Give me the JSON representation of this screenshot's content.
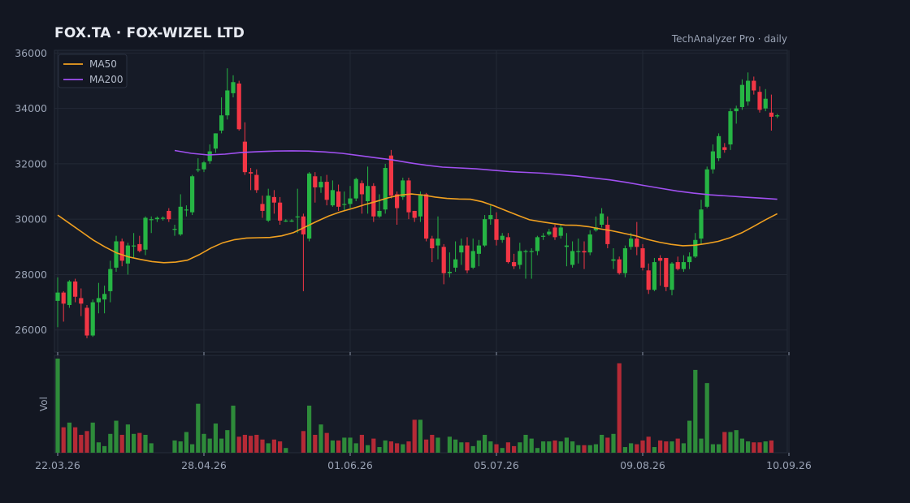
{
  "header": {
    "title": "FOX.TA  ·  FOX-WIZEL LTD",
    "source": "TechAnalyzer Pro · daily"
  },
  "colors": {
    "background": "#131722",
    "up": "#26b544",
    "down": "#f23645",
    "vol_up": "#2e8b3a",
    "vol_down": "#b52a36",
    "ma50": "#f0a020",
    "ma200": "#a050f0",
    "grid": "#232936",
    "text": "#9aa3b5"
  },
  "chart_data": {
    "type": "candlestick",
    "ticker": "FOX.TA",
    "interval": "daily",
    "price_axis": {
      "ylim": [
        25200,
        36100
      ],
      "ticks": [
        26000,
        28000,
        30000,
        32000,
        34000,
        36000
      ]
    },
    "volume_axis": {
      "label": "Vol"
    },
    "x_ticks": [
      {
        "index": 0,
        "label": "22.03.26"
      },
      {
        "index": 25,
        "label": "28.04.26"
      },
      {
        "index": 50,
        "label": "01.06.26"
      },
      {
        "index": 75,
        "label": "05.07.26"
      },
      {
        "index": 100,
        "label": "09.08.26"
      },
      {
        "index": 125,
        "label": "10.09.26"
      }
    ],
    "legend": {
      "position": "top-left",
      "entries": [
        "MA50",
        "MA200"
      ]
    },
    "grid": true,
    "candles": [
      [
        27050,
        27350,
        26100,
        27900
      ],
      [
        27350,
        26950,
        26300,
        27400
      ],
      [
        26900,
        27750,
        26800,
        27800
      ],
      [
        27750,
        27200,
        27000,
        27850
      ],
      [
        27150,
        26950,
        26500,
        27500
      ],
      [
        26800,
        25800,
        25700,
        26900
      ],
      [
        25800,
        27000,
        25750,
        27100
      ],
      [
        27000,
        27150,
        26600,
        27700
      ],
      [
        27100,
        27300,
        26600,
        27600
      ],
      [
        27400,
        28200,
        27000,
        28500
      ],
      [
        28250,
        29200,
        28100,
        29400
      ],
      [
        29200,
        28500,
        28300,
        29300
      ],
      [
        28400,
        29050,
        28000,
        29150
      ],
      [
        29050,
        29050,
        28600,
        29500
      ],
      [
        29100,
        28850,
        28800,
        29400
      ],
      [
        28900,
        30050,
        28700,
        30100
      ],
      [
        30000,
        30000,
        29500,
        30100
      ],
      [
        30000,
        30050,
        29900,
        30100
      ],
      [
        30050,
        30050,
        29950,
        30100
      ],
      [
        30300,
        30000,
        29900,
        30400
      ],
      [
        29650,
        29650,
        29400,
        29800
      ],
      [
        29450,
        30450,
        29400,
        30900
      ],
      [
        30350,
        30350,
        30100,
        30500
      ],
      [
        30250,
        31550,
        30150,
        31600
      ],
      [
        31800,
        31800,
        31700,
        32200
      ],
      [
        31800,
        32050,
        31700,
        32100
      ],
      [
        32100,
        32450,
        32000,
        32700
      ],
      [
        32550,
        33100,
        32400,
        33100
      ],
      [
        33200,
        33750,
        33100,
        34400
      ],
      [
        33750,
        34650,
        33600,
        35450
      ],
      [
        34550,
        34950,
        34400,
        35200
      ],
      [
        34900,
        33250,
        33200,
        35000
      ],
      [
        32800,
        31700,
        31600,
        33500
      ],
      [
        31700,
        31650,
        31050,
        31850
      ],
      [
        31600,
        31050,
        30950,
        31800
      ],
      [
        30550,
        30300,
        30050,
        30850
      ],
      [
        29950,
        30850,
        29900,
        31100
      ],
      [
        30800,
        30600,
        30200,
        31050
      ],
      [
        30600,
        29950,
        29800,
        30800
      ],
      [
        29950,
        29950,
        29900,
        30000
      ],
      [
        29950,
        29950,
        29900,
        30000
      ],
      [
        30100,
        30100,
        29500,
        31100
      ],
      [
        30100,
        29450,
        27400,
        30200
      ],
      [
        29300,
        31650,
        29200,
        31700
      ],
      [
        31550,
        31150,
        30600,
        31700
      ],
      [
        31150,
        31350,
        30950,
        31550
      ],
      [
        31350,
        30700,
        30500,
        31600
      ],
      [
        30500,
        31050,
        30450,
        31400
      ],
      [
        31000,
        30450,
        30300,
        31250
      ],
      [
        30550,
        30550,
        30300,
        31000
      ],
      [
        30550,
        30750,
        30400,
        31200
      ],
      [
        30750,
        31450,
        30650,
        31500
      ],
      [
        31300,
        30900,
        30200,
        31400
      ],
      [
        30650,
        31200,
        30200,
        31900
      ],
      [
        31200,
        30100,
        29900,
        31300
      ],
      [
        30100,
        30300,
        30050,
        30900
      ],
      [
        30350,
        31850,
        30200,
        32000
      ],
      [
        32300,
        30850,
        30750,
        32500
      ],
      [
        30900,
        30400,
        29800,
        31000
      ],
      [
        30800,
        31400,
        30700,
        31500
      ],
      [
        31400,
        30250,
        30000,
        31500
      ],
      [
        30300,
        30050,
        29900,
        30300
      ],
      [
        30100,
        30900,
        29900,
        31000
      ],
      [
        30900,
        29300,
        29200,
        30950
      ],
      [
        29300,
        28950,
        28450,
        29400
      ],
      [
        29050,
        29300,
        28550,
        30100
      ],
      [
        29000,
        28050,
        27650,
        29100
      ],
      [
        28050,
        28100,
        27900,
        28800
      ],
      [
        28250,
        28550,
        28100,
        29200
      ],
      [
        28800,
        29050,
        28350,
        29300
      ],
      [
        29050,
        28150,
        28050,
        29350
      ],
      [
        28250,
        28850,
        28200,
        29300
      ],
      [
        28750,
        29050,
        28300,
        29250
      ],
      [
        29050,
        30000,
        29000,
        30150
      ],
      [
        30000,
        30150,
        29800,
        30500
      ],
      [
        30000,
        29250,
        29050,
        30250
      ],
      [
        29250,
        29400,
        29150,
        29500
      ],
      [
        29350,
        28450,
        28400,
        29500
      ],
      [
        28450,
        28300,
        28200,
        28750
      ],
      [
        28350,
        28850,
        28200,
        29150
      ],
      [
        28850,
        28850,
        27850,
        28900
      ],
      [
        28850,
        28850,
        27850,
        28950
      ],
      [
        28850,
        29350,
        28700,
        29400
      ],
      [
        29400,
        29400,
        29250,
        29500
      ],
      [
        29450,
        29550,
        29400,
        29650
      ],
      [
        29700,
        29350,
        29250,
        29800
      ],
      [
        29400,
        29700,
        29300,
        29800
      ],
      [
        29000,
        29050,
        28300,
        29500
      ],
      [
        28350,
        28850,
        28250,
        29200
      ],
      [
        28850,
        28850,
        28400,
        29300
      ],
      [
        28850,
        28800,
        28200,
        29200
      ],
      [
        28800,
        29450,
        28700,
        29600
      ],
      [
        29600,
        29700,
        29550,
        30100
      ],
      [
        29800,
        30200,
        29700,
        30400
      ],
      [
        29800,
        29100,
        28950,
        30100
      ],
      [
        28500,
        28550,
        28200,
        28950
      ],
      [
        28550,
        28050,
        28000,
        28650
      ],
      [
        28050,
        28950,
        27900,
        29050
      ],
      [
        29000,
        29300,
        28900,
        29500
      ],
      [
        29300,
        29000,
        28700,
        29900
      ],
      [
        28950,
        28250,
        28150,
        29100
      ],
      [
        28150,
        27450,
        27300,
        28400
      ],
      [
        27450,
        28450,
        27400,
        28600
      ],
      [
        28600,
        28500,
        27600,
        28700
      ],
      [
        28600,
        27550,
        27400,
        28600
      ],
      [
        27450,
        28400,
        27250,
        28450
      ],
      [
        28450,
        28200,
        28150,
        28650
      ],
      [
        28200,
        28450,
        28100,
        28700
      ],
      [
        28450,
        28650,
        28200,
        28800
      ],
      [
        28650,
        29250,
        28600,
        29500
      ],
      [
        29300,
        30350,
        29100,
        30700
      ],
      [
        30450,
        31800,
        30400,
        31900
      ],
      [
        31800,
        32450,
        31650,
        32700
      ],
      [
        32200,
        33000,
        32100,
        33100
      ],
      [
        32600,
        32500,
        32400,
        32750
      ],
      [
        32700,
        33900,
        32500,
        34000
      ],
      [
        33900,
        34000,
        33450,
        34100
      ],
      [
        34050,
        34850,
        33950,
        35050
      ],
      [
        34250,
        35000,
        34100,
        35300
      ],
      [
        35000,
        34650,
        34500,
        35150
      ],
      [
        34600,
        33950,
        33850,
        34800
      ],
      [
        34000,
        34350,
        33900,
        34700
      ],
      [
        33850,
        33700,
        33200,
        34500
      ],
      [
        33750,
        33750,
        33650,
        33800
      ]
    ],
    "volume": [
      1.0,
      0.27,
      0.32,
      0.27,
      0.19,
      0.23,
      0.32,
      0.11,
      0.07,
      0.2,
      0.34,
      0.19,
      0.3,
      0.2,
      0.21,
      0.19,
      0.1,
      0.0,
      0.0,
      0.0,
      0.13,
      0.12,
      0.22,
      0.09,
      0.52,
      0.2,
      0.15,
      0.31,
      0.15,
      0.24,
      0.5,
      0.17,
      0.19,
      0.18,
      0.19,
      0.14,
      0.1,
      0.14,
      0.12,
      0.05,
      0.0,
      0.0,
      0.23,
      0.5,
      0.19,
      0.3,
      0.21,
      0.13,
      0.13,
      0.16,
      0.16,
      0.1,
      0.19,
      0.08,
      0.15,
      0.06,
      0.13,
      0.12,
      0.1,
      0.09,
      0.12,
      0.35,
      0.35,
      0.14,
      0.19,
      0.16,
      0.0,
      0.17,
      0.14,
      0.11,
      0.11,
      0.07,
      0.13,
      0.19,
      0.12,
      0.09,
      0.05,
      0.11,
      0.07,
      0.11,
      0.19,
      0.15,
      0.05,
      0.12,
      0.12,
      0.13,
      0.12,
      0.16,
      0.12,
      0.08,
      0.08,
      0.08,
      0.09,
      0.19,
      0.16,
      0.2,
      0.95,
      0.06,
      0.1,
      0.09,
      0.13,
      0.17,
      0.06,
      0.13,
      0.12,
      0.12,
      0.15,
      0.1,
      0.34,
      0.88,
      0.15,
      0.74,
      0.09,
      0.09,
      0.22,
      0.22,
      0.24,
      0.15,
      0.12,
      0.11,
      0.11,
      0.12,
      0.13
    ],
    "ma50": [
      [
        0,
        30150
      ],
      [
        3,
        29850
      ],
      [
        6,
        29550
      ],
      [
        9,
        29250
      ],
      [
        12,
        29000
      ],
      [
        15,
        28780
      ],
      [
        18,
        28640
      ],
      [
        21,
        28550
      ],
      [
        24,
        28470
      ],
      [
        27,
        28430
      ],
      [
        30,
        28450
      ],
      [
        33,
        28520
      ],
      [
        36,
        28720
      ],
      [
        39,
        28960
      ],
      [
        42,
        29150
      ],
      [
        45,
        29260
      ],
      [
        48,
        29320
      ],
      [
        51,
        29330
      ],
      [
        54,
        29340
      ],
      [
        57,
        29400
      ],
      [
        60,
        29520
      ],
      [
        63,
        29720
      ],
      [
        66,
        29930
      ],
      [
        69,
        30120
      ],
      [
        72,
        30270
      ],
      [
        75,
        30390
      ],
      [
        78,
        30520
      ],
      [
        81,
        30640
      ],
      [
        84,
        30770
      ],
      [
        87,
        30870
      ],
      [
        90,
        30910
      ],
      [
        93,
        30870
      ],
      [
        96,
        30800
      ],
      [
        99,
        30750
      ],
      [
        102,
        30730
      ],
      [
        105,
        30720
      ],
      [
        108,
        30630
      ],
      [
        111,
        30480
      ],
      [
        114,
        30310
      ],
      [
        117,
        30140
      ],
      [
        120,
        29980
      ],
      [
        123,
        29910
      ],
      [
        126,
        29840
      ],
      [
        129,
        29790
      ],
      [
        132,
        29780
      ],
      [
        135,
        29730
      ],
      [
        138,
        29650
      ],
      [
        141,
        29580
      ],
      [
        144,
        29490
      ],
      [
        147,
        29400
      ],
      [
        150,
        29270
      ],
      [
        153,
        29170
      ],
      [
        156,
        29090
      ],
      [
        159,
        29040
      ],
      [
        162,
        29060
      ],
      [
        165,
        29120
      ],
      [
        168,
        29200
      ],
      [
        171,
        29330
      ],
      [
        174,
        29510
      ],
      [
        177,
        29740
      ],
      [
        180,
        29980
      ],
      [
        183,
        30200
      ]
    ],
    "ma200": [
      [
        0,
        32480
      ],
      [
        6,
        32380
      ],
      [
        12,
        32320
      ],
      [
        18,
        32350
      ],
      [
        24,
        32410
      ],
      [
        30,
        32440
      ],
      [
        36,
        32460
      ],
      [
        42,
        32470
      ],
      [
        48,
        32460
      ],
      [
        54,
        32430
      ],
      [
        60,
        32380
      ],
      [
        66,
        32300
      ],
      [
        72,
        32220
      ],
      [
        78,
        32140
      ],
      [
        84,
        32040
      ],
      [
        90,
        31950
      ],
      [
        96,
        31880
      ],
      [
        102,
        31850
      ],
      [
        108,
        31820
      ],
      [
        114,
        31770
      ],
      [
        120,
        31720
      ],
      [
        126,
        31690
      ],
      [
        132,
        31660
      ],
      [
        138,
        31610
      ],
      [
        144,
        31560
      ],
      [
        150,
        31490
      ],
      [
        156,
        31420
      ],
      [
        162,
        31330
      ],
      [
        168,
        31220
      ],
      [
        174,
        31120
      ],
      [
        180,
        31020
      ],
      [
        186,
        30940
      ],
      [
        192,
        30880
      ],
      [
        198,
        30840
      ],
      [
        204,
        30800
      ],
      [
        210,
        30760
      ],
      [
        216,
        30720
      ]
    ]
  }
}
